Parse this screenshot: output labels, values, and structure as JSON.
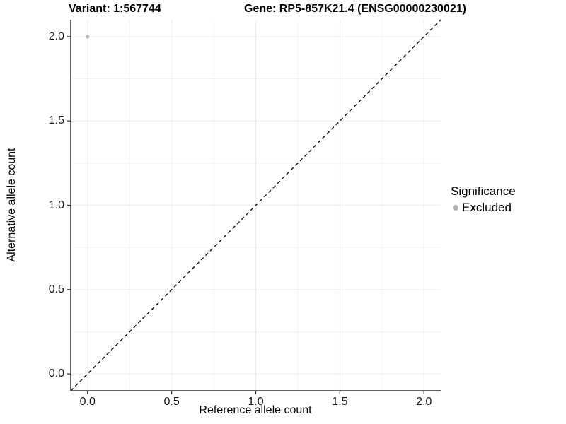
{
  "chart_data": {
    "type": "scatter",
    "variant_title": "Variant: 1:567744",
    "gene_title": "Gene: RP5-857K21.4 (ENSG00000230021)",
    "xlabel": "Reference allele count",
    "ylabel": "Alternative allele count",
    "xlim": [
      -0.1,
      2.1
    ],
    "ylim": [
      -0.1,
      2.1
    ],
    "x_ticks": {
      "values": [
        0,
        0.5,
        1,
        1.5,
        2
      ],
      "labels": [
        "0.0",
        "0.5",
        "1.0",
        "1.5",
        "2.0"
      ]
    },
    "y_ticks": {
      "values": [
        0,
        0.5,
        1,
        1.5,
        2
      ],
      "labels": [
        "0.0",
        "0.5",
        "1.0",
        "1.5",
        "2.0"
      ]
    },
    "minor_grid": [
      0.25,
      0.75,
      1.25,
      1.75
    ],
    "grid": "on",
    "series": [
      {
        "name": "Excluded",
        "color": "#b9b9b9",
        "marker": "circle",
        "points": [
          {
            "x": 0,
            "y": 2
          }
        ]
      }
    ],
    "reference_line": {
      "slope": 1,
      "intercept": 0,
      "style": "dashed",
      "color": "#000000"
    },
    "legend": {
      "title": "Significance",
      "position": "right",
      "entries": [
        {
          "label": "Excluded",
          "color": "#b0b0b0",
          "marker": "circle"
        }
      ]
    }
  },
  "colors": {
    "background": "#ffffff",
    "grid_major": "#ebebeb",
    "grid_minor": "#f3f3f3",
    "axis_line": "#333333",
    "tick_mark": "#333333",
    "tick_text": "#1a1a1a",
    "title_text": "#000000",
    "reference_line": "#000000"
  }
}
